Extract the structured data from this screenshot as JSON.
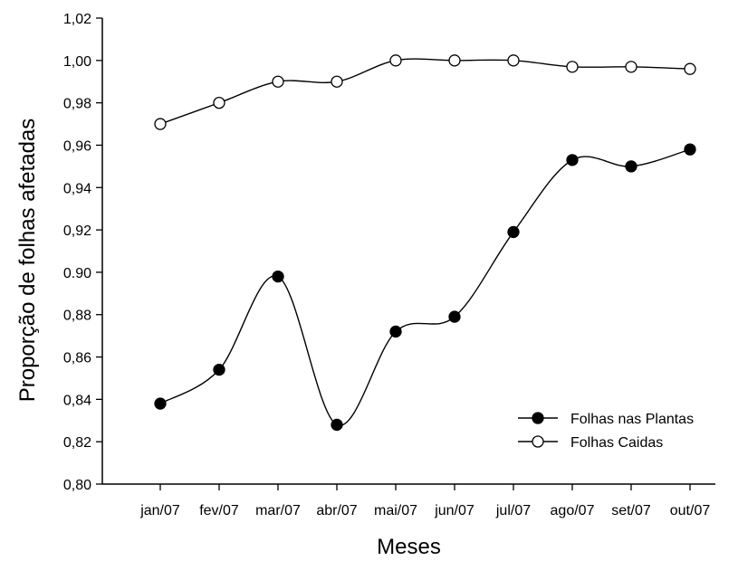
{
  "chart_data": {
    "type": "line",
    "xlabel": "Meses",
    "ylabel": "Proporção de folhas afetadas",
    "categories": [
      "jan/07",
      "fev/07",
      "mar/07",
      "abr/07",
      "mai/07",
      "jun/07",
      "jul/07",
      "ago/07",
      "set/07",
      "out/07"
    ],
    "ylim": [
      0.8,
      1.02
    ],
    "yticks": [
      0.8,
      0.82,
      0.84,
      0.86,
      0.88,
      0.9,
      0.92,
      0.94,
      0.96,
      0.98,
      1.0,
      1.02
    ],
    "ytick_labels": [
      "0,80",
      "0,82",
      "0,84",
      "0,86",
      "0,88",
      "0.90",
      "0,92",
      "0,94",
      "0,96",
      "0,98",
      "1,00",
      "1,02"
    ],
    "grid": false,
    "legend_position": "bottom-right",
    "series": [
      {
        "name": "Folhas nas Plantas",
        "marker": "filled-circle",
        "color": "#000000",
        "values": [
          0.838,
          0.854,
          0.898,
          0.828,
          0.872,
          0.879,
          0.919,
          0.953,
          0.95,
          0.958
        ]
      },
      {
        "name": "Folhas Caidas",
        "marker": "open-circle",
        "color": "#000000",
        "values": [
          0.97,
          0.98,
          0.99,
          0.99,
          1.0,
          1.0,
          1.0,
          0.997,
          0.997,
          0.996
        ]
      }
    ]
  }
}
